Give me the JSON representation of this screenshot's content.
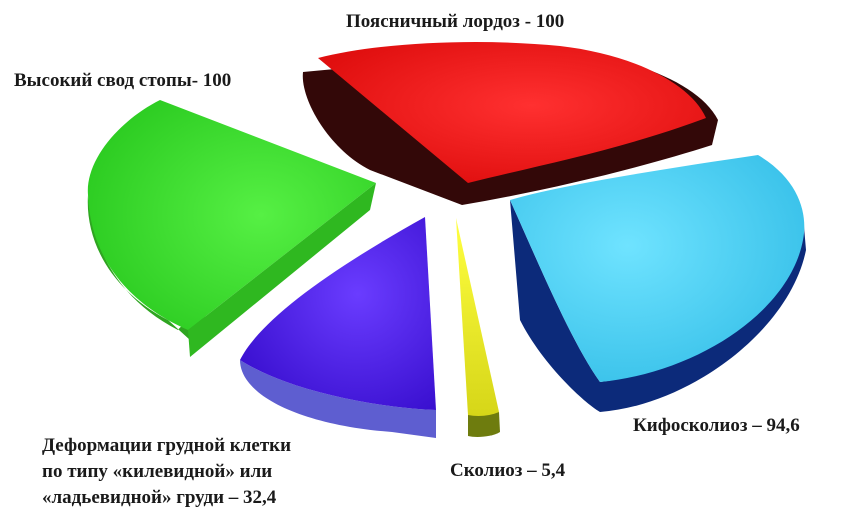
{
  "chart_data": {
    "type": "pie",
    "slices": [
      {
        "label": "Поясничный лордоз - 100",
        "value": 100,
        "color": "#f81c1c",
        "side": "#3a0a0a"
      },
      {
        "label": "Кифосколиоз – 94,6",
        "value": 94.6,
        "color": "#4fd3f7",
        "side": "#0a1f63"
      },
      {
        "label": "Сколиоз – 5,4",
        "value": 5.4,
        "color": "#ecec1c",
        "side": "#6d7a0c"
      },
      {
        "label_lines": [
          "Деформации грудной клетки",
          "по типу «килевидной» или",
          "«ладьевидной» груди – 32,4"
        ],
        "value": 32.4,
        "color": "#4f18f0",
        "side": "#5a5ac8"
      },
      {
        "label": "Высокий свод стопы- 100",
        "value": 100,
        "color": "#3ce62a",
        "side": "#3cae25"
      }
    ]
  }
}
